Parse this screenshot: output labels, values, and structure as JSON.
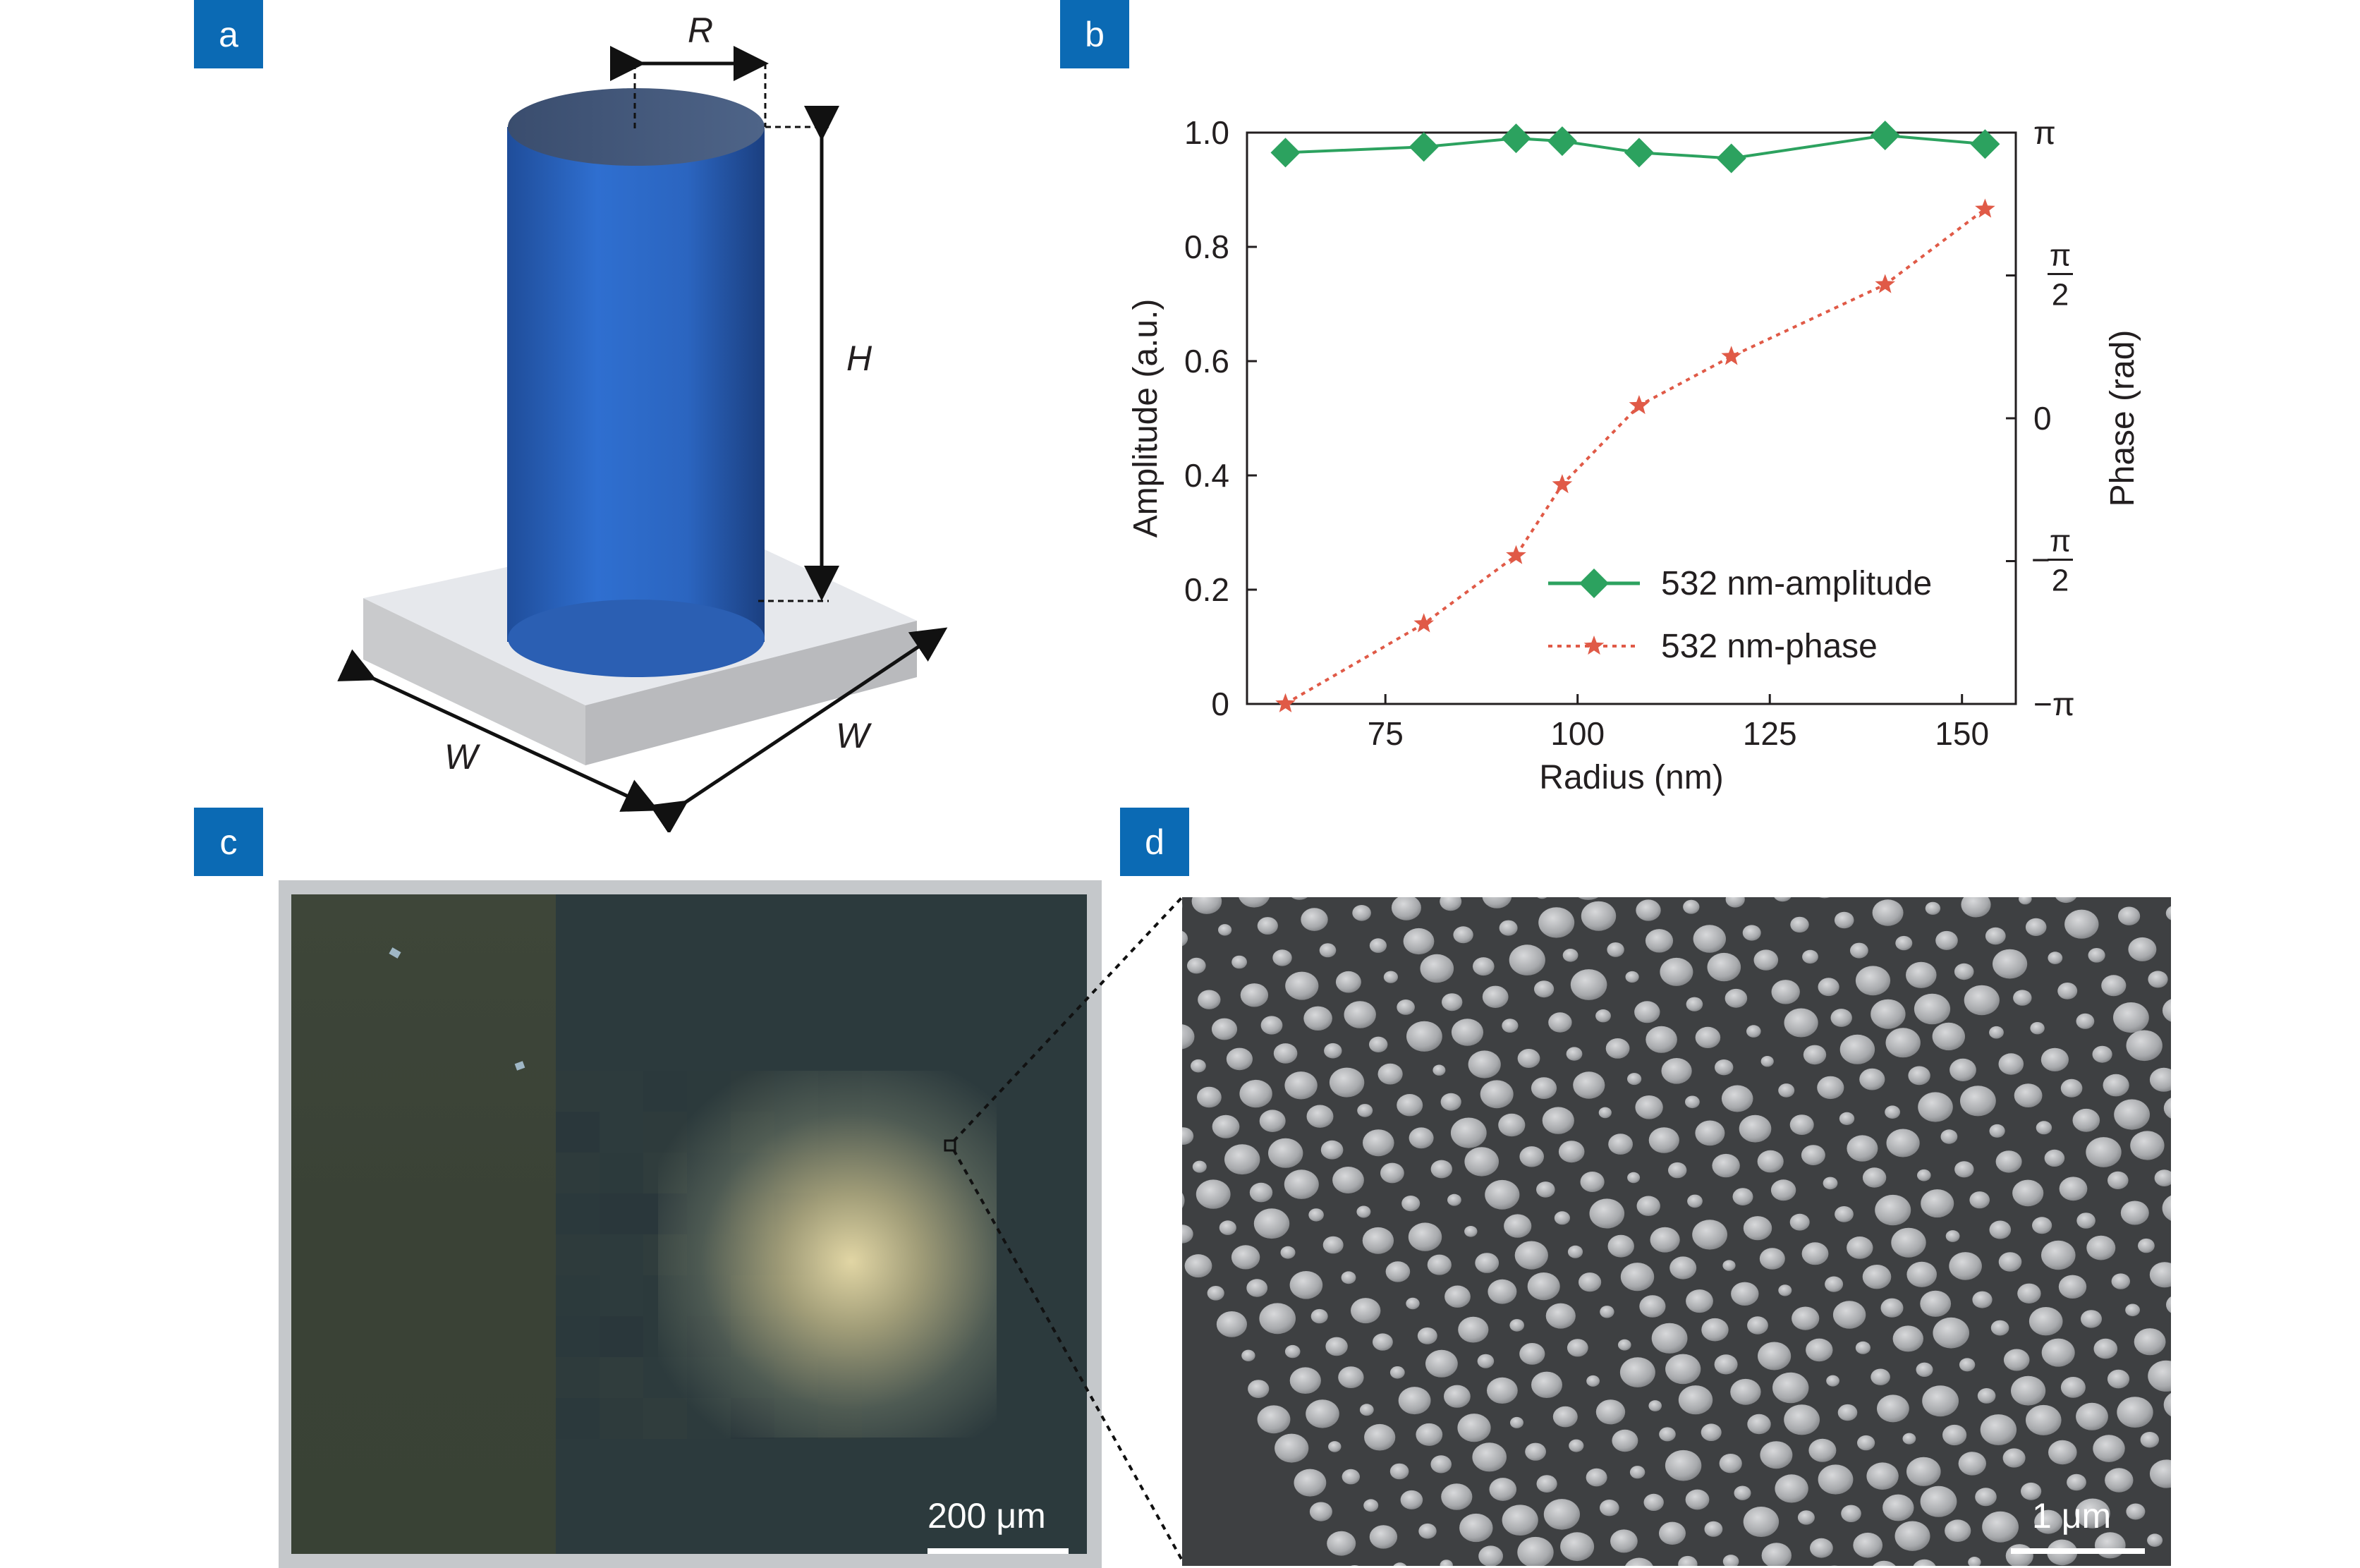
{
  "panels": {
    "a": {
      "label": "a",
      "dims": {
        "R": "R",
        "H": "H",
        "W1": "W",
        "W2": "W"
      }
    },
    "b": {
      "label": "b"
    },
    "c": {
      "label": "c",
      "scalebar": "200 μm"
    },
    "d": {
      "label": "d",
      "scalebar": "1 μm"
    }
  },
  "chart_data": {
    "type": "line",
    "xlabel": "Radius (nm)",
    "ylabel": "Amplitude (a.u.)",
    "y2label": "Phase (rad)",
    "xlim": [
      57,
      157
    ],
    "ylim": [
      0,
      1.0
    ],
    "x_ticks": [
      "75",
      "100",
      "125",
      "150"
    ],
    "x_tick_values": [
      75,
      100,
      125,
      150
    ],
    "y_ticks": [
      "0",
      "0.2",
      "0.4",
      "0.6",
      "0.8",
      "1.0"
    ],
    "y_tick_values": [
      0,
      0.2,
      0.4,
      0.6,
      0.8,
      1.0
    ],
    "y2_ticks": [
      "−π",
      "−π/2",
      "0",
      "π/2",
      "π"
    ],
    "legend_position": "bottom-right",
    "series": [
      {
        "name": "532 nm-amplitude",
        "color": "#2ca25f",
        "marker": "diamond",
        "line": "solid",
        "x": [
          62,
          80,
          92,
          98,
          108,
          120,
          140,
          153
        ],
        "y": [
          0.965,
          0.975,
          0.99,
          0.985,
          0.965,
          0.955,
          0.995,
          0.98
        ]
      },
      {
        "name": "532 nm-phase",
        "color": "#e05a47",
        "marker": "star",
        "line": "dotted",
        "x": [
          62,
          80,
          92,
          98,
          108,
          120,
          140,
          153
        ],
        "y": [
          -3.14,
          -2.26,
          -1.51,
          -0.73,
          0.14,
          0.68,
          1.47,
          2.3
        ]
      }
    ]
  }
}
